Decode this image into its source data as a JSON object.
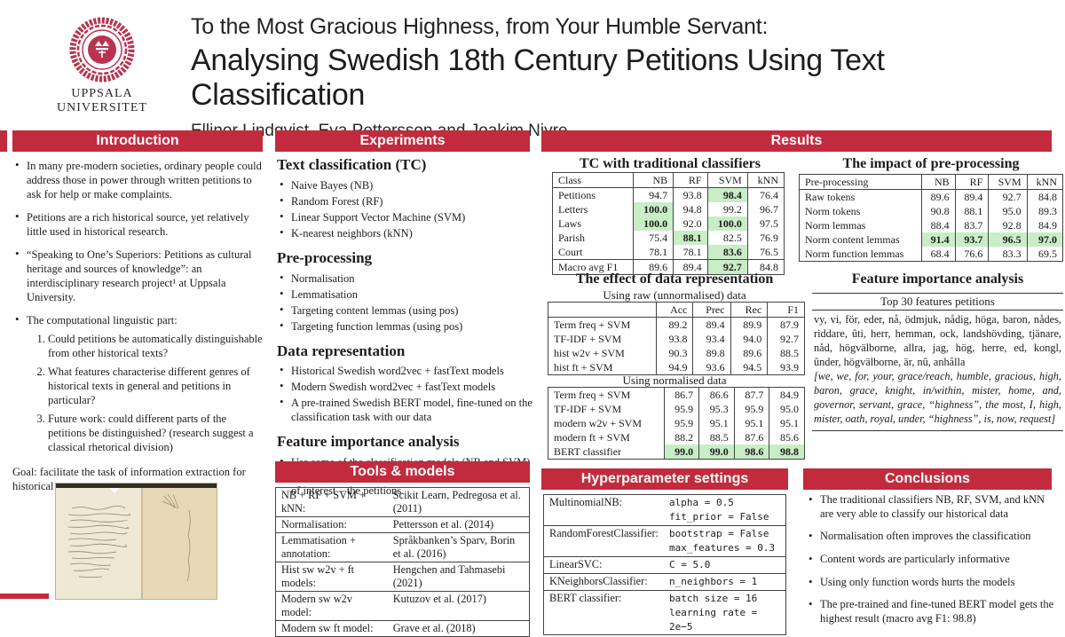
{
  "colors": {
    "accent": "#c22b3d",
    "seal": "#b93351",
    "highlight_green": "#c9edc6"
  },
  "header": {
    "logo_line1": "UPPSALA",
    "logo_line2": "UNIVERSITET",
    "title_line1": "To the Most Gracious Highness, from Your Humble Servant:",
    "title_line2": "Analysing Swedish 18th Century Petitions Using Text Classification",
    "authors": "Ellinor Lindqvist, Eva Pettersson and Joakim Nivre"
  },
  "introduction": {
    "title": "Introduction",
    "bullets": [
      "In many pre-modern societies, ordinary people could address those in power through written petitions to ask for help or make complaints.",
      "Petitions are a rich historical source, yet relatively little used in historical research.",
      "“Speaking to One’s Superiors: Petitions as cultural heritage and sources of knowledge”: an interdisciplinary research project¹ at Uppsala University.",
      "The computational linguistic part:"
    ],
    "numbered": [
      "Could petitions be automatically distinguishable from other historical texts?",
      "What features characterise different genres of historical texts in general and petitions in particular?",
      "Future work: could different parts of the petitions be distinguished? (research suggest a classical rhetorical division)"
    ],
    "goal": "Goal: facilitate the task of information extraction for historical text."
  },
  "experiments": {
    "title": "Experiments",
    "tc_heading": "Text classification (TC)",
    "tc_bullets": [
      "Naive Bayes (NB)",
      "Random Forest (RF)",
      "Linear Support Vector Machine (SVM)",
      "K-nearest neighbors (kNN)"
    ],
    "pre_heading": "Pre-processing",
    "pre_bullets": [
      "Normalisation",
      "Lemmatisation",
      "Targeting content lemmas (using pos)",
      "Targeting function lemmas (using pos)"
    ],
    "data_heading": "Data representation",
    "data_bullets": [
      "Historical Swedish word2vec + fastText models",
      "Modern Swedish word2vec + fastText models",
      "A pre-trained Swedish BERT model, fine-tuned on the classification task with our data"
    ],
    "fi_heading": "Feature importance analysis",
    "fi_bullets": [
      "Use some of the classification models (NB and SVM) and extract the most important features for our class of interest – the petitions."
    ]
  },
  "results": {
    "title": "Results",
    "tc_table": {
      "caption": "TC with traditional classifiers",
      "headers": [
        "Class",
        "NB",
        "RF",
        "SVM",
        "kNN"
      ],
      "rows": [
        {
          "cells": [
            "Petitions",
            "94.7",
            "93.8",
            "98.4",
            "76.4"
          ],
          "highlight": [
            3
          ]
        },
        {
          "cells": [
            "Letters",
            "100.0",
            "94.8",
            "99.2",
            "96.7"
          ],
          "highlight": [
            1
          ]
        },
        {
          "cells": [
            "Laws",
            "100.0",
            "92.0",
            "100.0",
            "97.5"
          ],
          "highlight": [
            1,
            3
          ]
        },
        {
          "cells": [
            "Parish",
            "75.4",
            "88.1",
            "82.5",
            "76.9"
          ],
          "highlight": [
            2
          ]
        },
        {
          "cells": [
            "Court",
            "78.1",
            "78.1",
            "83.6",
            "76.5"
          ],
          "highlight": [
            3
          ]
        },
        {
          "cells": [
            "Macro avg F1",
            "89.6",
            "89.4",
            "92.7",
            "84.8"
          ],
          "highlight": [
            3
          ],
          "footer": true
        }
      ]
    },
    "preproc_table": {
      "caption": "The impact of pre-processing",
      "headers": [
        "Pre-processing",
        "NB",
        "RF",
        "SVM",
        "kNN"
      ],
      "rows": [
        {
          "cells": [
            "Raw tokens",
            "89.6",
            "89.4",
            "92.7",
            "84.8"
          ]
        },
        {
          "cells": [
            "Norm tokens",
            "90.8",
            "88.1",
            "95.0",
            "89.3"
          ]
        },
        {
          "cells": [
            "Norm lemmas",
            "88.4",
            "83.7",
            "92.8",
            "84.9"
          ]
        },
        {
          "cells": [
            "Norm content lemmas",
            "91.4",
            "93.7",
            "96.5",
            "97.0"
          ],
          "highlight": [
            1,
            2,
            3,
            4
          ]
        },
        {
          "cells": [
            "Norm function lemmas",
            "68.4",
            "76.6",
            "83.3",
            "69.5"
          ]
        }
      ]
    },
    "datarep": {
      "caption": "The effect of data representation",
      "sub_raw": "Using raw (unnormalised) data",
      "sub_norm": "Using normalised data",
      "raw_table": {
        "headers": [
          "",
          "Acc",
          "Prec",
          "Rec",
          "F1"
        ],
        "rows": [
          {
            "cells": [
              "Term freq + SVM",
              "89.2",
              "89.4",
              "89.9",
              "87.9"
            ]
          },
          {
            "cells": [
              "TF-IDF + SVM",
              "93.8",
              "93.4",
              "94.0",
              "92.7"
            ]
          },
          {
            "cells": [
              "hist w2v + SVM",
              "90.3",
              "89.8",
              "89.6",
              "88.5"
            ]
          },
          {
            "cells": [
              "hist ft + SVM",
              "94.9",
              "93.6",
              "94.5",
              "93.9"
            ]
          }
        ]
      },
      "norm_table": {
        "headers": [],
        "rows": [
          {
            "cells": [
              "Term freq + SVM",
              "86.7",
              "86.6",
              "87.7",
              "84.9"
            ]
          },
          {
            "cells": [
              "TF-IDF + SVM",
              "95.9",
              "95.3",
              "95.9",
              "95.0"
            ]
          },
          {
            "cells": [
              "modern w2v + SVM",
              "95.9",
              "95.1",
              "95.1",
              "95.1"
            ]
          },
          {
            "cells": [
              "modern ft + SVM",
              "88.2",
              "88.5",
              "87.6",
              "85.6"
            ]
          },
          {
            "cells": [
              "BERT classifier",
              "99.0",
              "99.0",
              "98.6",
              "98.8"
            ],
            "highlight": [
              1,
              2,
              3,
              4
            ]
          }
        ]
      }
    },
    "feature_importance": {
      "caption": "Feature importance analysis",
      "header": "Top 30 features petitions",
      "swedish": "vy, vi, för, eder, nå, ödmjuk, nådig, höga, baron, nådes, riddare, ûti, herr, hemman, ock, landshövding, tjänare, nåd, högvälborne, allra, jag, hög, herre, ed, kongl, ûnder, högvälborne, är, nû, anhålla",
      "english": "[we, we, for, your, grace/reach, humble, gracious, high, baron, grace, knight, in/within, mister, home, and, governor, servant, grace, “highness”, the most, I, high, mister, oath, royal, under, “highness”, is, now, request]"
    }
  },
  "tools": {
    "title": "Tools & models",
    "table": {
      "numeric": false,
      "rows": [
        {
          "cells": [
            "NB + RF + SVM + kNN:",
            "Scikit Learn, Pedregosa et al. (2011)"
          ]
        },
        {
          "cells": [
            "Normalisation:",
            "Pettersson et al. (2014)"
          ]
        },
        {
          "cells": [
            "Lemmatisation + annotation:",
            "Språkbanken’s Sparv, Borin et al. (2016)"
          ]
        },
        {
          "cells": [
            "Hist sw w2v + ft models:",
            "Hengchen and Tahmasebi (2021)"
          ]
        },
        {
          "cells": [
            "Modern sw w2v model:",
            "Kutuzov et al. (2017)"
          ]
        },
        {
          "cells": [
            "Modern sw ft model:",
            "Grave et al. (2018)"
          ]
        }
      ]
    }
  },
  "hyperparams": {
    "title": "Hyperparameter settings",
    "table": {
      "numeric": false,
      "rows": [
        {
          "cells": [
            "MultinomialNB:",
            [
              "alpha = 0.5",
              "fit_prior = False"
            ]
          ]
        },
        {
          "cells": [
            "RandomForestClassifier:",
            [
              "bootstrap = False",
              "max_features = 0.3"
            ]
          ]
        },
        {
          "cells": [
            "LinearSVC:",
            [
              "C = 5.0"
            ]
          ]
        },
        {
          "cells": [
            "KNeighborsClassifier:",
            [
              "n_neighbors = 1"
            ]
          ]
        },
        {
          "cells": [
            "BERT classifier:",
            [
              "batch size = 16",
              "learning rate = 2e−5"
            ]
          ]
        }
      ]
    }
  },
  "conclusions": {
    "title": "Conclusions",
    "bullets": [
      "The traditional classifiers NB, RF, SVM, and kNN are very able to classify our historical data",
      "Normalisation often improves the classification",
      "Content words are particularly informative",
      "Using only function words hurts the models",
      "The pre-trained and fine-tuned BERT model gets the highest result (macro avg F1: 98.8)"
    ]
  }
}
